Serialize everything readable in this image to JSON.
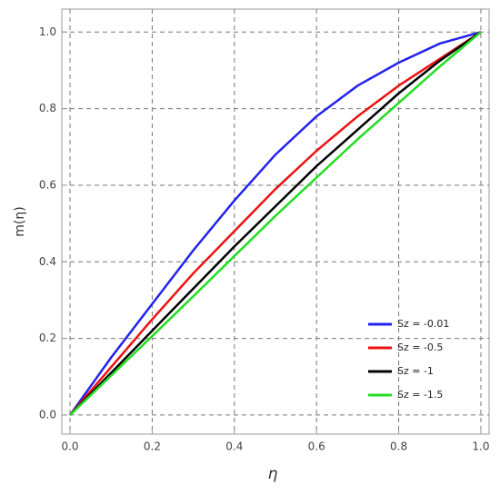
{
  "chart_data": {
    "type": "line",
    "x_label": "η",
    "y_label": "m(η)",
    "x": [
      0,
      0.1,
      0.2,
      0.3,
      0.4,
      0.5,
      0.6,
      0.7,
      0.8,
      0.9,
      1.0
    ],
    "series": [
      {
        "name": "Sz = -0.01",
        "color": "#2222ee",
        "values": [
          0,
          0.15,
          0.29,
          0.43,
          0.56,
          0.68,
          0.78,
          0.86,
          0.92,
          0.97,
          1.0
        ]
      },
      {
        "name": "Sz = -0.5",
        "color": "#ee1111",
        "values": [
          0,
          0.125,
          0.25,
          0.37,
          0.48,
          0.59,
          0.69,
          0.78,
          0.86,
          0.93,
          1.0
        ]
      },
      {
        "name": "Sz = -1",
        "color": "#000000",
        "values": [
          0,
          0.11,
          0.22,
          0.33,
          0.44,
          0.545,
          0.65,
          0.745,
          0.84,
          0.925,
          1.0
        ]
      },
      {
        "name": "Sz = -1.5",
        "color": "#22dd22",
        "values": [
          0,
          0.103,
          0.206,
          0.31,
          0.415,
          0.52,
          0.62,
          0.72,
          0.815,
          0.91,
          1.0
        ]
      }
    ],
    "xlim": [
      -0.02,
      1.02
    ],
    "ylim": [
      -0.05,
      1.06
    ],
    "xticks": [
      {
        "value": 0,
        "label": "0.0"
      },
      0.2,
      0.4,
      0.6,
      0.8,
      {
        "value": 1,
        "label": "1.0"
      }
    ],
    "yticks": [
      {
        "value": 0,
        "label": "0.0"
      },
      0.2,
      0.4,
      0.6,
      0.8,
      {
        "value": 1,
        "label": "1.0"
      }
    ],
    "grid": true,
    "legend": "lower-right"
  }
}
